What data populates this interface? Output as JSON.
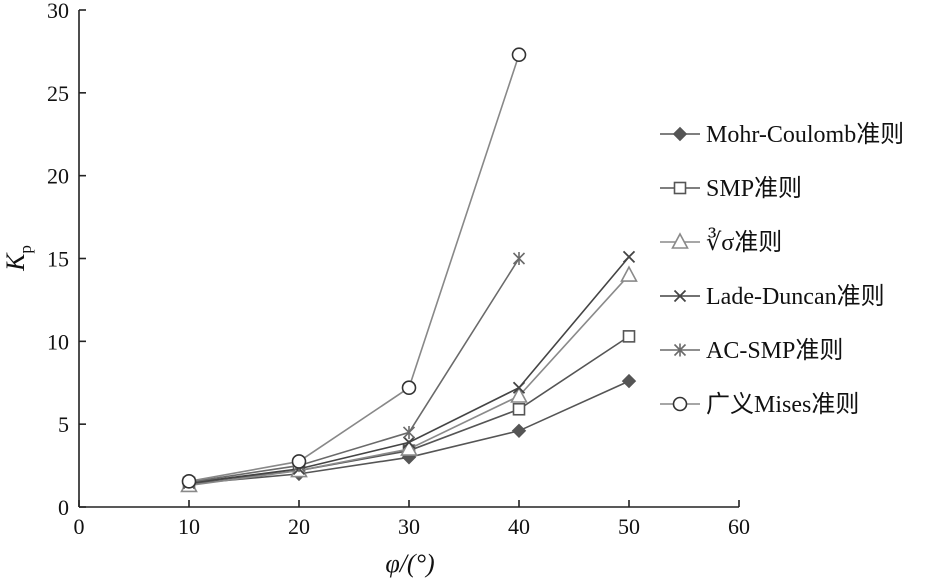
{
  "chart_data": {
    "type": "line",
    "title": "",
    "xlabel": "φ/(°)",
    "ylabel_main": "K",
    "ylabel_sub": "p",
    "xlim": [
      0,
      60
    ],
    "ylim": [
      0,
      30
    ],
    "xticks": [
      "0",
      "10",
      "20",
      "30",
      "40",
      "50",
      "60"
    ],
    "yticks": [
      "0",
      "5",
      "10",
      "15",
      "20",
      "25",
      "30"
    ],
    "legend_position": "right",
    "series": [
      {
        "name": "Mohr-Coulomb准则",
        "marker": "diamond",
        "color": "#555555",
        "x": [
          10,
          20,
          30,
          40,
          50
        ],
        "values": [
          1.4,
          2.0,
          3.0,
          4.6,
          7.6
        ]
      },
      {
        "name": "SMP准则",
        "marker": "square",
        "color": "#555555",
        "x": [
          10,
          20,
          30,
          40,
          50
        ],
        "values": [
          1.45,
          2.2,
          3.4,
          5.9,
          10.3
        ]
      },
      {
        "name": "∛σ准则",
        "marker": "triangle",
        "color": "#8a8a8a",
        "x": [
          10,
          20,
          30,
          40,
          50
        ],
        "values": [
          1.3,
          2.2,
          3.5,
          6.7,
          14.0
        ]
      },
      {
        "name": "Lade-Duncan准则",
        "marker": "x",
        "color": "#444444",
        "x": [
          10,
          20,
          30,
          40,
          50
        ],
        "values": [
          1.45,
          2.3,
          3.9,
          7.2,
          15.1
        ]
      },
      {
        "name": "AC-SMP准则",
        "marker": "asterisk",
        "color": "#6a6a6a",
        "x": [
          10,
          20,
          30,
          40
        ],
        "values": [
          1.5,
          2.5,
          4.5,
          15.0
        ]
      },
      {
        "name": "广义Mises准则",
        "marker": "circle",
        "color": "#888888",
        "x": [
          10,
          20,
          30,
          40
        ],
        "values": [
          1.55,
          2.75,
          7.2,
          27.3
        ]
      }
    ]
  }
}
